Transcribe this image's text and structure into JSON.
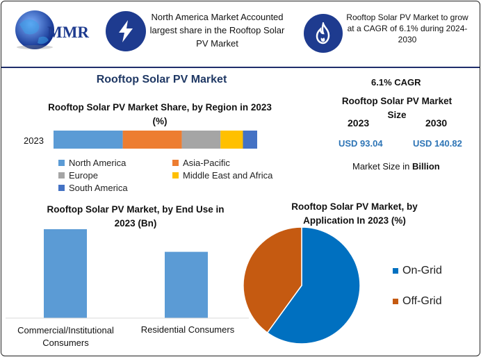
{
  "header": {
    "logo_text": "MMR",
    "box1_text": "North America Market Accounted largest share in the Rooftop Solar PV Market",
    "box2_text": "Rooftop Solar PV Market to grow at a CAGR of 6.1% during 2024-2030",
    "box1_icon": "lightning-icon",
    "box2_icon": "flame-icon",
    "accent_color": "#1e3b8f"
  },
  "main_title": "Rooftop Solar PV Market",
  "summary": {
    "cagr": "6.1% CAGR",
    "size_title": "Rooftop Solar PV Market Size",
    "year1": "2023",
    "year2": "2030",
    "value1": "USD 93.04",
    "value2": "USD 140.82",
    "unit_note_prefix": "Market Size in ",
    "unit_note_bold": "Billion"
  },
  "chart_data": [
    {
      "type": "bar",
      "orientation": "horizontal-stacked",
      "title": "Rooftop Solar PV Market Share, by Region in 2023 (%)",
      "categories": [
        "2023"
      ],
      "series": [
        {
          "name": "North America",
          "values": [
            34
          ],
          "color": "#5b9bd5"
        },
        {
          "name": "Asia-Pacific",
          "values": [
            29
          ],
          "color": "#ed7d31"
        },
        {
          "name": "Europe",
          "values": [
            19
          ],
          "color": "#a5a5a5"
        },
        {
          "name": "Middle East and Africa",
          "values": [
            11
          ],
          "color": "#ffc000"
        },
        {
          "name": "South America",
          "values": [
            7
          ],
          "color": "#4472c4"
        }
      ],
      "legend_position": "bottom"
    },
    {
      "type": "bar",
      "title": "Rooftop Solar PV Market, by End Use in 2023 (Bn)",
      "categories": [
        "Commercial/Institutional Consumers",
        "Residential Consumers"
      ],
      "values": [
        55,
        41
      ],
      "color": "#5b9bd5"
    },
    {
      "type": "pie",
      "title": "Rooftop Solar PV Market, by Application In 2023 (%)",
      "labels": [
        "On-Grid",
        "Off-Grid"
      ],
      "values": [
        60,
        40
      ],
      "colors": [
        "#0070c0",
        "#c55a11"
      ],
      "legend_position": "right"
    }
  ]
}
